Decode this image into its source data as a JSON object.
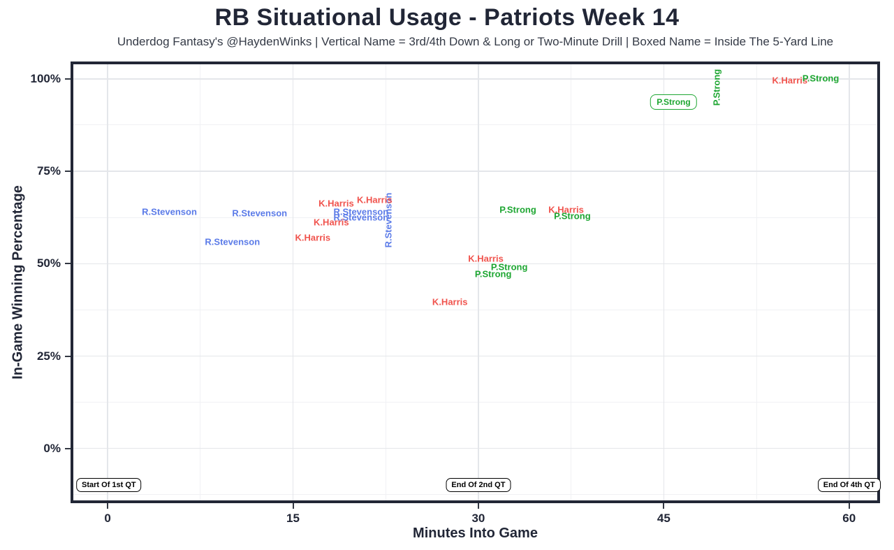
{
  "title": "RB Situational Usage - Patriots Week 14",
  "subtitle": "Underdog Fantasy's @HaydenWinks | Vertical Name = 3rd/4th Down & Long or Two-Minute Drill | Boxed Name = Inside The 5-Yard Line",
  "colors": {
    "text": "#212636",
    "border": "#222736",
    "grid_major": "#e4e6ea",
    "grid_minor": "#f0f1f4",
    "annotation": "#000000"
  },
  "chart_data": {
    "type": "scatter",
    "title": "RB Situational Usage - Patriots Week 14",
    "subtitle": "Underdog Fantasy's @HaydenWinks | Vertical Name = 3rd/4th Down & Long or Two-Minute Drill | Boxed Name = Inside The 5-Yard Line",
    "xlabel": "Minutes Into Game",
    "ylabel": "In-Game Winning Percentage",
    "xlim": [
      -3.0,
      62.5
    ],
    "ylim": [
      -14.8,
      104.7
    ],
    "grid": true,
    "legend": false,
    "x_ticks": [
      0,
      15,
      30,
      45,
      60
    ],
    "x_tick_labels": [
      "0",
      "15",
      "30",
      "45",
      "60"
    ],
    "y_ticks": [
      0,
      25,
      50,
      75,
      100
    ],
    "y_tick_labels": [
      "0%",
      "25%",
      "50%",
      "75%",
      "100%"
    ],
    "x_minor_ticks": [
      7.5,
      22.5,
      37.5,
      52.5
    ],
    "y_minor_ticks": [
      -12.5,
      12.5,
      37.5,
      62.5,
      87.5
    ],
    "series_colors": {
      "R.Stevenson": "#5b7be8",
      "K.Harris": "#f0534d",
      "P.Strong": "#1ea632"
    },
    "points": [
      {
        "label": "R.Stevenson",
        "x": 22.7,
        "y": 61.7,
        "orientation": "vertical"
      },
      {
        "label": "R.Stevenson",
        "x": 5.0,
        "y": 64.1
      },
      {
        "label": "R.Stevenson",
        "x": 12.3,
        "y": 63.6
      },
      {
        "label": "R.Stevenson",
        "x": 10.1,
        "y": 56.0
      },
      {
        "label": "R.Stevenson",
        "x": 20.5,
        "y": 64.1
      },
      {
        "label": "R.Stevenson",
        "x": 20.5,
        "y": 62.6
      },
      {
        "label": "K.Harris",
        "x": 18.5,
        "y": 66.4
      },
      {
        "label": "K.Harris",
        "x": 21.6,
        "y": 67.2
      },
      {
        "label": "K.Harris",
        "x": 18.1,
        "y": 61.3
      },
      {
        "label": "K.Harris",
        "x": 16.6,
        "y": 57.1
      },
      {
        "label": "K.Harris",
        "x": 27.7,
        "y": 39.7
      },
      {
        "label": "K.Harris",
        "x": 30.6,
        "y": 51.4
      },
      {
        "label": "K.Harris",
        "x": 37.1,
        "y": 64.7
      },
      {
        "label": "K.Harris",
        "x": 55.2,
        "y": 99.6
      },
      {
        "label": "P.Strong",
        "x": 32.5,
        "y": 49.1
      },
      {
        "label": "P.Strong",
        "x": 31.2,
        "y": 47.2
      },
      {
        "label": "P.Strong",
        "x": 33.2,
        "y": 64.7
      },
      {
        "label": "P.Strong",
        "x": 37.6,
        "y": 63.0
      },
      {
        "label": "P.Strong",
        "x": 45.8,
        "y": 93.7,
        "boxed": true
      },
      {
        "label": "P.Strong",
        "x": 49.3,
        "y": 97.7,
        "orientation": "vertical"
      },
      {
        "label": "P.Strong",
        "x": 57.7,
        "y": 100.2
      }
    ],
    "annotations": [
      {
        "text": "Start Of 1st QT",
        "x": 0.1,
        "y": -9.9
      },
      {
        "text": "End Of 2nd QT",
        "x": 30.0,
        "y": -9.9
      },
      {
        "text": "End Of 4th QT",
        "x": 60.0,
        "y": -9.9
      }
    ]
  }
}
